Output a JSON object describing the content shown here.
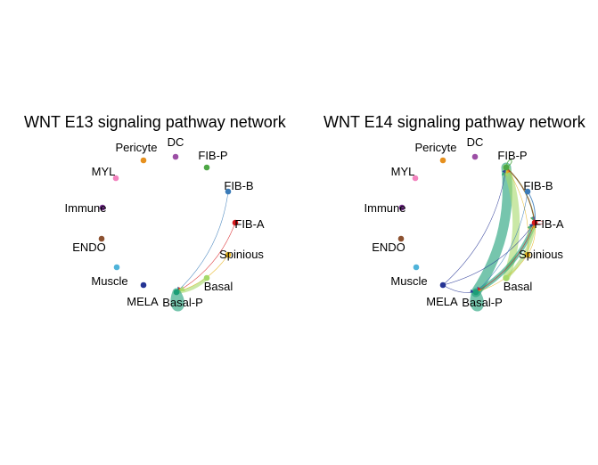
{
  "panels": [
    {
      "id": "e13",
      "title": "WNT E13 signaling pathway network",
      "nodes": [
        {
          "id": "DC",
          "label": "DC",
          "color": "#9C4FA5"
        },
        {
          "id": "FIB-P",
          "label": "FIB-P",
          "color": "#4DA745"
        },
        {
          "id": "FIB-B",
          "label": "FIB-B",
          "color": "#3A7BB8"
        },
        {
          "id": "FIB-A",
          "label": "FIB-A",
          "color": "#D7191C"
        },
        {
          "id": "Spinious",
          "label": "Spinious",
          "color": "#E7B521"
        },
        {
          "id": "Basal",
          "label": "Basal",
          "color": "#A6D96A"
        },
        {
          "id": "Basal-P",
          "label": "Basal-P",
          "color": "#1B9E77"
        },
        {
          "id": "MELA",
          "label": "MELA",
          "color": "#253494"
        },
        {
          "id": "Muscle",
          "label": "Muscle",
          "color": "#4FB3D9"
        },
        {
          "id": "ENDO",
          "label": "ENDO",
          "color": "#8C5130"
        },
        {
          "id": "Immune",
          "label": "Immune",
          "color": "#7B3294"
        },
        {
          "id": "MYL",
          "label": "MYL",
          "color": "#F383BE"
        },
        {
          "id": "Pericyte",
          "label": "Pericyte",
          "color": "#E6901E"
        }
      ],
      "edges": [
        {
          "from": "FIB-B",
          "to": "Basal-P",
          "color": "#3A7BB8",
          "weight": 0.5
        },
        {
          "from": "FIB-A",
          "to": "Basal-P",
          "color": "#D7191C",
          "weight": 0.5
        },
        {
          "from": "Spinious",
          "to": "Basal-P",
          "color": "#E7B521",
          "weight": 0.5
        },
        {
          "from": "Basal",
          "to": "Basal-P",
          "color": "#A6D96A",
          "weight": 4
        },
        {
          "from": "Basal-P",
          "to": "Basal-P",
          "color": "#1B9E77",
          "weight": 9
        }
      ]
    },
    {
      "id": "e14",
      "title": "WNT E14 signaling pathway network",
      "nodes": [
        {
          "id": "DC",
          "label": "DC",
          "color": "#9C4FA5"
        },
        {
          "id": "FIB-P",
          "label": "FIB-P",
          "color": "#4DA745"
        },
        {
          "id": "FIB-B",
          "label": "FIB-B",
          "color": "#3A7BB8"
        },
        {
          "id": "FIB-A",
          "label": "FIB-A",
          "color": "#D7191C"
        },
        {
          "id": "Spinious",
          "label": "Spinious",
          "color": "#E7B521"
        },
        {
          "id": "Basal",
          "label": "Basal",
          "color": "#A6D96A"
        },
        {
          "id": "Basal-P",
          "label": "Basal-P",
          "color": "#1B9E77"
        },
        {
          "id": "MELA",
          "label": "MELA",
          "color": "#253494"
        },
        {
          "id": "Muscle",
          "label": "Muscle",
          "color": "#4FB3D9"
        },
        {
          "id": "ENDO",
          "label": "ENDO",
          "color": "#8C5130"
        },
        {
          "id": "Immune",
          "label": "Immune",
          "color": "#7B3294"
        },
        {
          "id": "MYL",
          "label": "MYL",
          "color": "#F383BE"
        },
        {
          "id": "Pericyte",
          "label": "Pericyte",
          "color": "#E6901E"
        }
      ],
      "edges": [
        {
          "from": "Basal-P",
          "to": "FIB-P",
          "color": "#1B9E77",
          "weight": 11
        },
        {
          "from": "Basal",
          "to": "FIB-P",
          "color": "#A6D96A",
          "weight": 8
        },
        {
          "from": "Basal-P",
          "to": "FIB-A",
          "color": "#1B9E77",
          "weight": 5
        },
        {
          "from": "Basal",
          "to": "FIB-A",
          "color": "#A6D96A",
          "weight": 4
        },
        {
          "from": "Basal-P",
          "to": "Basal-P",
          "color": "#1B9E77",
          "weight": 9
        },
        {
          "from": "FIB-P",
          "to": "FIB-A",
          "color": "#4DA745",
          "weight": 1.5
        },
        {
          "from": "FIB-P",
          "to": "FIB-P",
          "color": "#4DA745",
          "weight": 1
        },
        {
          "from": "FIB-B",
          "to": "FIB-A",
          "color": "#3A7BB8",
          "weight": 1
        },
        {
          "from": "FIB-A",
          "to": "FIB-P",
          "color": "#D7191C",
          "weight": 0.6
        },
        {
          "from": "FIB-A",
          "to": "FIB-A",
          "color": "#D7191C",
          "weight": 0.6
        },
        {
          "from": "Spinious",
          "to": "FIB-P",
          "color": "#E7B521",
          "weight": 0.6
        },
        {
          "from": "Spinious",
          "to": "FIB-A",
          "color": "#E7B521",
          "weight": 0.6
        },
        {
          "from": "Spinious",
          "to": "Basal-P",
          "color": "#E7B521",
          "weight": 0.6
        },
        {
          "from": "MELA",
          "to": "FIB-P",
          "color": "#253494",
          "weight": 0.6
        },
        {
          "from": "MELA",
          "to": "FIB-A",
          "color": "#253494",
          "weight": 0.6
        },
        {
          "from": "MELA",
          "to": "Basal-P",
          "color": "#253494",
          "weight": 0.6
        },
        {
          "from": "FIB-B",
          "to": "Basal-P",
          "color": "#3A7BB8",
          "weight": 0.6
        },
        {
          "from": "FIB-A",
          "to": "Basal-P",
          "color": "#D7191C",
          "weight": 0.6
        }
      ]
    }
  ]
}
